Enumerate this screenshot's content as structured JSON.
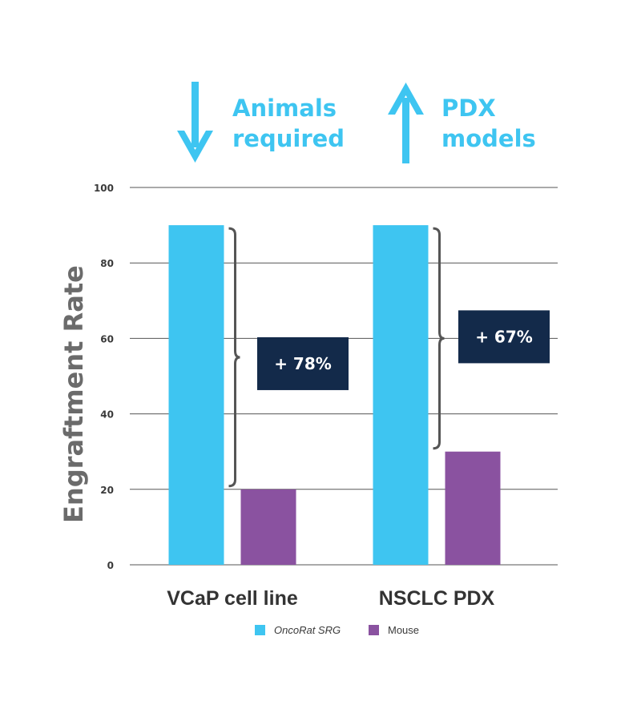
{
  "headlines": [
    {
      "direction": "down",
      "line1": "Animals",
      "line2": "required"
    },
    {
      "direction": "up",
      "line1": "PDX",
      "line2": "models"
    }
  ],
  "colors": {
    "oncorat": "#3ec5f1",
    "mouse": "#8a52a0",
    "callout_bg": "#132a4a",
    "headline": "#3ec5f1",
    "grid": "#555555"
  },
  "chart_data": {
    "type": "bar",
    "ylabel": "Engraftment Rate",
    "ylim": [
      0,
      100
    ],
    "yticks": [
      0,
      20,
      40,
      60,
      80,
      100
    ],
    "grid": true,
    "categories": [
      "VCaP cell line",
      "NSCLC PDX"
    ],
    "series": [
      {
        "name": "OncoRat SRG",
        "values": [
          90,
          90
        ]
      },
      {
        "name": "Mouse",
        "values": [
          20,
          30
        ]
      }
    ],
    "annotations": [
      "+ 78%",
      "+ 67%"
    ],
    "legend_position": "bottom"
  }
}
